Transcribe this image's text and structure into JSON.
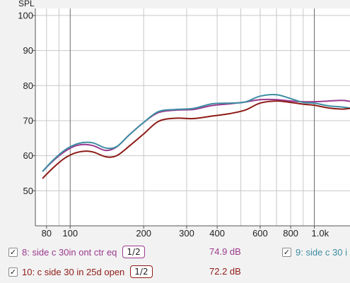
{
  "chart_data": {
    "type": "line",
    "ylabel": "SPL",
    "x_scale": "log",
    "xlim": [
      72,
      1400
    ],
    "ylim": [
      40,
      102
    ],
    "grid": true,
    "x_ticks": [
      {
        "value": 80,
        "label": "80"
      },
      {
        "value": 100,
        "label": "100"
      },
      {
        "value": 200,
        "label": "200"
      },
      {
        "value": 300,
        "label": "300"
      },
      {
        "value": 400,
        "label": "400"
      },
      {
        "value": 600,
        "label": "600"
      },
      {
        "value": 800,
        "label": "800"
      },
      {
        "value": 1000,
        "label": "1.0k"
      }
    ],
    "x_minor": [
      90,
      500,
      700,
      900
    ],
    "y_ticks": [
      50,
      60,
      70,
      80,
      90,
      100
    ],
    "series": [
      {
        "name": "8: side c 30in ont ctr eq",
        "color": "#9b3a8e",
        "x": [
          77,
          85,
          95,
          105,
          115,
          125,
          140,
          155,
          175,
          200,
          230,
          270,
          320,
          380,
          450,
          520,
          600,
          700,
          800,
          900,
          1000,
          1150,
          1300,
          1400
        ],
        "values": [
          55.5,
          58.5,
          61.2,
          62.8,
          63.2,
          62.8,
          61.5,
          62.5,
          66.0,
          69.5,
          72.3,
          73.0,
          73.2,
          74.3,
          74.8,
          75.3,
          76.0,
          76.0,
          75.6,
          75.4,
          75.4,
          75.6,
          75.8,
          75.5
        ]
      },
      {
        "name": "9: side c 30 i",
        "color": "#3d8ea3",
        "x": [
          77,
          85,
          95,
          105,
          115,
          125,
          140,
          155,
          175,
          200,
          230,
          270,
          320,
          380,
          450,
          520,
          600,
          700,
          800,
          900,
          1000,
          1150,
          1300,
          1400
        ],
        "values": [
          55.5,
          58.7,
          61.6,
          63.2,
          63.8,
          63.6,
          62.2,
          62.6,
          66.0,
          69.5,
          72.6,
          73.2,
          73.5,
          74.8,
          75.0,
          75.3,
          77.0,
          77.4,
          76.3,
          75.2,
          75.0,
          74.2,
          73.9,
          73.6
        ]
      },
      {
        "name": "10: c side 30 in 25d open",
        "color": "#8e1b17",
        "x": [
          77,
          85,
          95,
          105,
          115,
          125,
          140,
          155,
          175,
          200,
          230,
          270,
          320,
          380,
          450,
          520,
          600,
          700,
          800,
          900,
          1000,
          1150,
          1300,
          1400
        ],
        "values": [
          53.5,
          56.5,
          59.3,
          60.8,
          61.3,
          61.0,
          59.7,
          60.0,
          62.8,
          66.2,
          69.8,
          70.7,
          70.6,
          71.3,
          72.0,
          73.0,
          75.0,
          75.6,
          75.2,
          74.7,
          74.4,
          73.6,
          73.3,
          73.5
        ]
      }
    ]
  },
  "legend": {
    "rows": [
      {
        "checked": "✓",
        "label": "8: side c 30in ont ctr eq",
        "smoothing": "1/2",
        "value": "74.9 dB",
        "color": "#9b3a8e"
      },
      {
        "checked": "✓",
        "label": "10: c side 30 in 25d open",
        "smoothing": "1/2",
        "value": "72.2 dB",
        "color": "#8e1b17"
      }
    ],
    "extra": {
      "checked": "✓",
      "label": "9: side c 30 i",
      "color": "#3d8ea3"
    }
  }
}
